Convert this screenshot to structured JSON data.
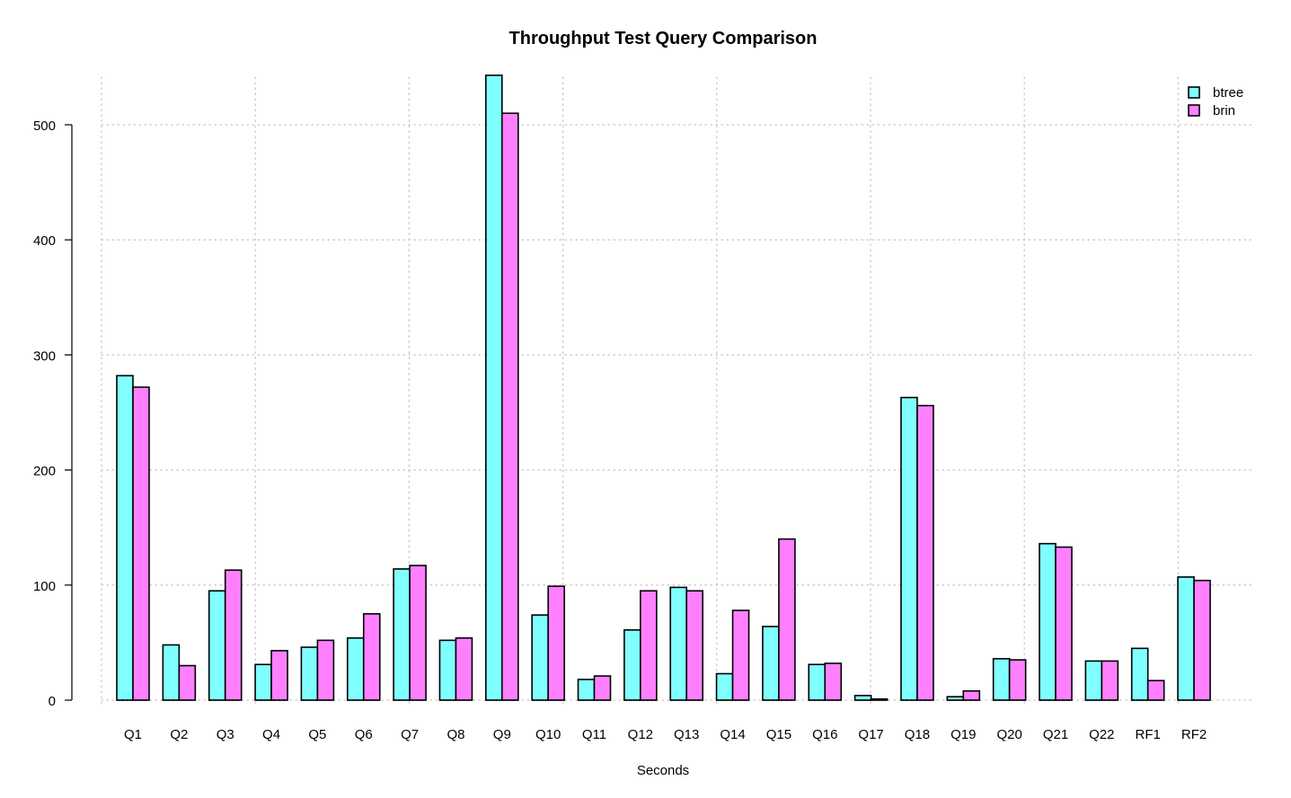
{
  "chart_data": {
    "type": "bar",
    "title": "Throughput Test Query Comparison",
    "xlabel": "Seconds",
    "ylabel": "",
    "ylim": [
      0,
      545
    ],
    "yticks": [
      0,
      100,
      200,
      300,
      400,
      500
    ],
    "grid": true,
    "legend_position": "top-right",
    "categories": [
      "Q1",
      "Q2",
      "Q3",
      "Q4",
      "Q5",
      "Q6",
      "Q7",
      "Q8",
      "Q9",
      "Q10",
      "Q11",
      "Q12",
      "Q13",
      "Q14",
      "Q15",
      "Q16",
      "Q17",
      "Q18",
      "Q19",
      "Q20",
      "Q21",
      "Q22",
      "RF1",
      "RF2"
    ],
    "series": [
      {
        "name": "btree",
        "color": "#80ffff",
        "values": [
          282,
          48,
          95,
          31,
          46,
          54,
          114,
          52,
          543,
          74,
          18,
          61,
          98,
          23,
          64,
          31,
          4,
          263,
          3,
          36,
          136,
          34,
          45,
          107
        ]
      },
      {
        "name": "brin",
        "color": "#ff80ff",
        "values": [
          272,
          30,
          113,
          43,
          52,
          75,
          117,
          54,
          510,
          99,
          21,
          95,
          95,
          78,
          140,
          32,
          1,
          256,
          8,
          35,
          133,
          34,
          17,
          104
        ]
      }
    ]
  }
}
